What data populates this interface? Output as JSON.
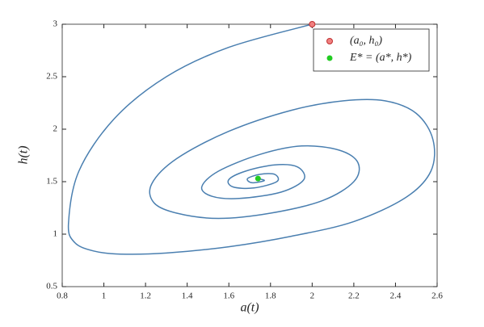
{
  "chart_data": {
    "type": "line",
    "x_label": "a(t)",
    "y_label": "h(t)",
    "xlim": [
      0.8,
      2.6
    ],
    "ylim": [
      0.5,
      3
    ],
    "xticks": [
      0.8,
      1,
      1.2,
      1.4,
      1.6,
      1.8,
      2,
      2.2,
      2.4,
      2.6
    ],
    "yticks": [
      0.5,
      1,
      1.5,
      2,
      2.5,
      3
    ],
    "legend": "upper right",
    "series": [
      {
        "color": "#4a7fb0",
        "style": "line",
        "x": [
          2,
          1.6,
          1.3,
          1.05,
          0.88,
          0.83,
          0.86,
          0.95,
          1.08,
          1.3,
          1.6,
          1.9,
          2.2,
          2.45,
          2.57,
          2.58,
          2.5,
          2.35,
          2.15,
          1.9,
          1.6,
          1.35,
          1.23,
          1.24,
          1.35,
          1.55,
          1.8,
          2.05,
          2.2,
          2.22,
          2.13,
          1.95,
          1.75,
          1.55,
          1.47,
          1.52,
          1.65,
          1.85,
          1.96,
          1.93,
          1.82,
          1.68,
          1.6,
          1.62,
          1.72,
          1.83,
          1.82,
          1.75,
          1.69,
          1.71,
          1.77,
          1.74
        ],
        "values": [
          3,
          2.78,
          2.5,
          2.1,
          1.6,
          1.1,
          0.92,
          0.84,
          0.81,
          0.82,
          0.88,
          0.98,
          1.12,
          1.35,
          1.6,
          1.9,
          2.15,
          2.27,
          2.27,
          2.18,
          1.98,
          1.72,
          1.48,
          1.3,
          1.2,
          1.15,
          1.2,
          1.32,
          1.5,
          1.68,
          1.8,
          1.84,
          1.76,
          1.6,
          1.45,
          1.36,
          1.34,
          1.4,
          1.52,
          1.64,
          1.66,
          1.6,
          1.52,
          1.45,
          1.44,
          1.5,
          1.57,
          1.57,
          1.53,
          1.49,
          1.51,
          1.53
        ]
      },
      {
        "name": "(a₀, h₀)",
        "color": "#f08080",
        "style": "marker",
        "x": [
          2
        ],
        "values": [
          3
        ]
      },
      {
        "name": "E* = (a*, h*)",
        "color": "#22cc22",
        "style": "marker",
        "x": [
          1.74
        ],
        "values": [
          1.53
        ]
      }
    ]
  }
}
